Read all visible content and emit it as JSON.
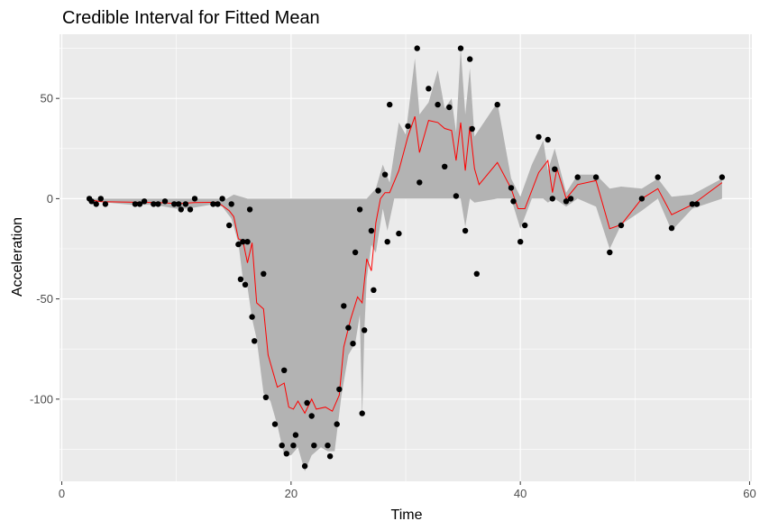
{
  "chart_data": {
    "type": "scatter",
    "title": "Credible Interval for Fitted Mean",
    "xlabel": "Time",
    "ylabel": "Acceleration",
    "xlim": [
      -0.2,
      60.2
    ],
    "ylim": [
      -141,
      82
    ],
    "x_ticks": [
      0,
      20,
      40,
      60
    ],
    "x_tick_labels": [
      "0",
      "20",
      "40",
      "60"
    ],
    "y_ticks": [
      -100,
      -50,
      0,
      50
    ],
    "y_tick_labels": [
      "-100",
      "-50",
      "0",
      "50"
    ],
    "grid": true,
    "legend": "none",
    "colors": {
      "panel": "#ebebeb",
      "grid": "#ffffff",
      "ribbon": "#b3b3b3",
      "line": "#ff0000",
      "points": "#000000"
    },
    "points": [
      [
        2.4,
        0
      ],
      [
        2.6,
        -1.3
      ],
      [
        3.0,
        -2.7
      ],
      [
        3.4,
        0
      ],
      [
        3.8,
        -2.7
      ],
      [
        6.4,
        -2.7
      ],
      [
        6.8,
        -2.7
      ],
      [
        7.2,
        -1.3
      ],
      [
        8.0,
        -2.7
      ],
      [
        8.4,
        -2.7
      ],
      [
        9.0,
        -1.3
      ],
      [
        9.8,
        -2.7
      ],
      [
        10.2,
        -2.7
      ],
      [
        10.4,
        -5.4
      ],
      [
        10.8,
        -2.7
      ],
      [
        11.2,
        -5.4
      ],
      [
        11.6,
        0
      ],
      [
        13.2,
        -2.7
      ],
      [
        13.6,
        -2.7
      ],
      [
        14.0,
        0
      ],
      [
        14.6,
        -13.3
      ],
      [
        14.8,
        -2.7
      ],
      [
        15.4,
        -22.8
      ],
      [
        15.6,
        -40.2
      ],
      [
        15.8,
        -21.5
      ],
      [
        16.0,
        -42.9
      ],
      [
        16.2,
        -21.5
      ],
      [
        16.4,
        -5.4
      ],
      [
        16.6,
        -59.0
      ],
      [
        16.8,
        -71.0
      ],
      [
        17.6,
        -37.5
      ],
      [
        17.8,
        -99.1
      ],
      [
        18.6,
        -112.5
      ],
      [
        19.2,
        -123.1
      ],
      [
        19.4,
        -85.6
      ],
      [
        19.6,
        -127.2
      ],
      [
        20.2,
        -123.1
      ],
      [
        20.4,
        -117.9
      ],
      [
        21.2,
        -133.4
      ],
      [
        21.4,
        -101.9
      ],
      [
        21.8,
        -108.4
      ],
      [
        22.0,
        -123.1
      ],
      [
        23.2,
        -123.1
      ],
      [
        23.4,
        -128.5
      ],
      [
        24.0,
        -112.5
      ],
      [
        24.2,
        -95.1
      ],
      [
        24.6,
        -53.5
      ],
      [
        25.0,
        -64.4
      ],
      [
        25.4,
        -72.3
      ],
      [
        25.6,
        -26.8
      ],
      [
        26.0,
        -5.4
      ],
      [
        26.2,
        -107.1
      ],
      [
        26.4,
        -65.6
      ],
      [
        27.0,
        -16.0
      ],
      [
        27.2,
        -45.6
      ],
      [
        27.6,
        4.0
      ],
      [
        28.2,
        12.0
      ],
      [
        28.4,
        -21.5
      ],
      [
        28.6,
        46.9
      ],
      [
        29.4,
        -17.4
      ],
      [
        30.2,
        36.2
      ],
      [
        31.0,
        75.0
      ],
      [
        31.2,
        8.1
      ],
      [
        32.0,
        54.9
      ],
      [
        32.8,
        46.9
      ],
      [
        33.4,
        16.0
      ],
      [
        33.8,
        45.6
      ],
      [
        34.4,
        1.3
      ],
      [
        34.8,
        75.0
      ],
      [
        35.2,
        -16.0
      ],
      [
        35.6,
        69.6
      ],
      [
        35.8,
        34.8
      ],
      [
        36.2,
        -37.5
      ],
      [
        38.0,
        46.9
      ],
      [
        39.2,
        5.4
      ],
      [
        39.4,
        -1.3
      ],
      [
        40.0,
        -21.5
      ],
      [
        40.4,
        -13.3
      ],
      [
        41.6,
        30.8
      ],
      [
        42.4,
        29.4
      ],
      [
        42.8,
        0
      ],
      [
        43.0,
        14.7
      ],
      [
        44.0,
        -1.3
      ],
      [
        44.4,
        0
      ],
      [
        45.0,
        10.7
      ],
      [
        46.6,
        10.7
      ],
      [
        47.8,
        -26.8
      ],
      [
        48.8,
        -13.3
      ],
      [
        50.6,
        0
      ],
      [
        52.0,
        10.7
      ],
      [
        53.2,
        -14.7
      ],
      [
        55.0,
        -2.7
      ],
      [
        55.4,
        -2.7
      ],
      [
        57.6,
        10.7
      ]
    ],
    "fitted_mean": [
      [
        2.4,
        -0.5
      ],
      [
        3.4,
        -1.5
      ],
      [
        6.4,
        -1.8
      ],
      [
        8.4,
        -2.0
      ],
      [
        10.2,
        -2.5
      ],
      [
        11.6,
        -2.0
      ],
      [
        13.6,
        -1.8
      ],
      [
        14.6,
        -6.0
      ],
      [
        15.0,
        -9.0
      ],
      [
        15.4,
        -20.0
      ],
      [
        15.8,
        -21.0
      ],
      [
        16.2,
        -32.0
      ],
      [
        16.6,
        -22.0
      ],
      [
        17.0,
        -52.0
      ],
      [
        17.6,
        -55.0
      ],
      [
        18.0,
        -78.0
      ],
      [
        18.8,
        -94.0
      ],
      [
        19.4,
        -92.0
      ],
      [
        19.8,
        -104.0
      ],
      [
        20.2,
        -105.0
      ],
      [
        20.6,
        -101.0
      ],
      [
        21.2,
        -107.0
      ],
      [
        21.8,
        -100.0
      ],
      [
        22.2,
        -105.0
      ],
      [
        23.0,
        -104.0
      ],
      [
        23.6,
        -106.0
      ],
      [
        24.2,
        -98.0
      ],
      [
        24.6,
        -74.0
      ],
      [
        25.2,
        -60.0
      ],
      [
        25.8,
        -49.0
      ],
      [
        26.2,
        -52.0
      ],
      [
        26.6,
        -30.0
      ],
      [
        27.0,
        -36.0
      ],
      [
        27.4,
        -12.0
      ],
      [
        27.8,
        0.0
      ],
      [
        28.2,
        3.0
      ],
      [
        28.6,
        3.0
      ],
      [
        29.4,
        14.0
      ],
      [
        30.2,
        31.0
      ],
      [
        30.8,
        41.0
      ],
      [
        31.2,
        23.0
      ],
      [
        32.0,
        39.0
      ],
      [
        32.8,
        38.0
      ],
      [
        33.4,
        35.0
      ],
      [
        34.0,
        34.0
      ],
      [
        34.4,
        19.0
      ],
      [
        34.8,
        38.0
      ],
      [
        35.2,
        14.0
      ],
      [
        35.6,
        36.0
      ],
      [
        36.0,
        15.0
      ],
      [
        36.4,
        7.0
      ],
      [
        38.0,
        18.0
      ],
      [
        39.2,
        5.0
      ],
      [
        39.8,
        -5.0
      ],
      [
        40.4,
        -5.0
      ],
      [
        41.6,
        13.0
      ],
      [
        42.4,
        19.0
      ],
      [
        42.8,
        3.0
      ],
      [
        43.2,
        15.0
      ],
      [
        44.0,
        0.0
      ],
      [
        45.0,
        7.0
      ],
      [
        46.6,
        9.0
      ],
      [
        47.8,
        -15.0
      ],
      [
        48.8,
        -13.0
      ],
      [
        50.6,
        0.0
      ],
      [
        52.0,
        5.0
      ],
      [
        53.2,
        -8.0
      ],
      [
        55.0,
        -3.0
      ],
      [
        57.6,
        8.0
      ]
    ],
    "interval_upper": [
      [
        2.4,
        0
      ],
      [
        14.4,
        0
      ],
      [
        15.0,
        2
      ],
      [
        16.2,
        0
      ],
      [
        17.2,
        0
      ],
      [
        26.6,
        0
      ],
      [
        27.4,
        5
      ],
      [
        28.0,
        17
      ],
      [
        28.6,
        8
      ],
      [
        29.4,
        38
      ],
      [
        30.0,
        32
      ],
      [
        30.8,
        70
      ],
      [
        31.2,
        42
      ],
      [
        32.0,
        48
      ],
      [
        32.8,
        64
      ],
      [
        33.4,
        45
      ],
      [
        34.0,
        50
      ],
      [
        34.4,
        33
      ],
      [
        34.8,
        75
      ],
      [
        35.2,
        42
      ],
      [
        35.6,
        65
      ],
      [
        36.0,
        31
      ],
      [
        38.0,
        48
      ],
      [
        39.2,
        10
      ],
      [
        40.0,
        1
      ],
      [
        41.0,
        17
      ],
      [
        42.0,
        29
      ],
      [
        42.4,
        14
      ],
      [
        43.0,
        25
      ],
      [
        44.0,
        3
      ],
      [
        45.0,
        12
      ],
      [
        46.6,
        12
      ],
      [
        47.8,
        5
      ],
      [
        48.8,
        6
      ],
      [
        50.6,
        5
      ],
      [
        52.0,
        10
      ],
      [
        53.2,
        1
      ],
      [
        55.0,
        2
      ],
      [
        57.6,
        10
      ]
    ],
    "interval_lower": [
      [
        57.6,
        0
      ],
      [
        55.0,
        -5
      ],
      [
        53.2,
        -16
      ],
      [
        52.0,
        0
      ],
      [
        50.6,
        -6
      ],
      [
        48.8,
        -13
      ],
      [
        47.8,
        -25
      ],
      [
        46.6,
        -4
      ],
      [
        45.0,
        0
      ],
      [
        44.0,
        -4
      ],
      [
        43.0,
        0
      ],
      [
        42.4,
        -2
      ],
      [
        42.0,
        0
      ],
      [
        41.0,
        0
      ],
      [
        40.0,
        -15
      ],
      [
        39.2,
        0
      ],
      [
        38.0,
        0
      ],
      [
        36.0,
        -2
      ],
      [
        35.6,
        0
      ],
      [
        35.2,
        -14
      ],
      [
        34.8,
        0
      ],
      [
        34.4,
        0
      ],
      [
        33.0,
        0
      ],
      [
        29.0,
        0
      ],
      [
        28.4,
        -16
      ],
      [
        28.0,
        -5
      ],
      [
        27.4,
        -27
      ],
      [
        27.0,
        -23
      ],
      [
        26.6,
        -40
      ],
      [
        26.4,
        -65
      ],
      [
        26.2,
        -110
      ],
      [
        26.0,
        -58
      ],
      [
        25.6,
        -72
      ],
      [
        25.0,
        -78
      ],
      [
        24.4,
        -98
      ],
      [
        23.8,
        -126
      ],
      [
        23.2,
        -126
      ],
      [
        22.6,
        -124
      ],
      [
        21.8,
        -128
      ],
      [
        21.2,
        -136
      ],
      [
        20.6,
        -124
      ],
      [
        20.0,
        -128
      ],
      [
        19.4,
        -128
      ],
      [
        18.8,
        -113
      ],
      [
        18.2,
        -101
      ],
      [
        17.6,
        -97
      ],
      [
        17.0,
        -70
      ],
      [
        16.6,
        -60
      ],
      [
        16.2,
        -44
      ],
      [
        15.8,
        -40
      ],
      [
        15.4,
        -22
      ],
      [
        14.8,
        -10
      ],
      [
        14.0,
        -4
      ],
      [
        13.0,
        -3
      ],
      [
        11.0,
        -5
      ],
      [
        10.0,
        -5
      ],
      [
        8.0,
        -3
      ],
      [
        6.0,
        -3
      ],
      [
        4.0,
        -2
      ],
      [
        2.4,
        -1
      ]
    ]
  }
}
